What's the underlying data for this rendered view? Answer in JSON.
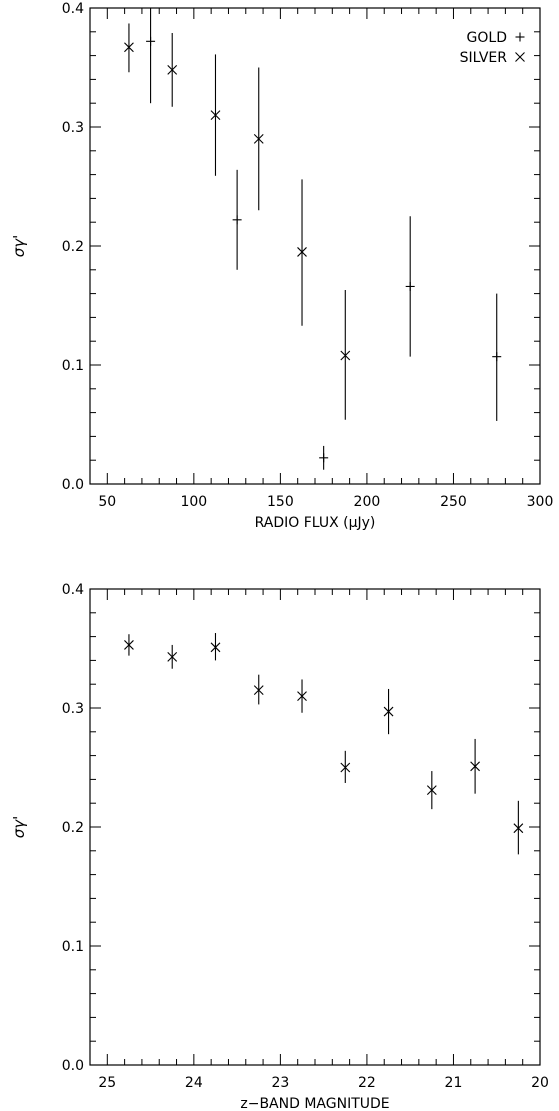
{
  "chart_data": [
    {
      "type": "scatter",
      "xlabel": "RADIO FLUX (μJy)",
      "ylabel": "σγ'",
      "xlim": [
        40,
        300
      ],
      "ylim": [
        0.0,
        0.4
      ],
      "xticks": [
        50,
        100,
        150,
        200,
        250,
        300
      ],
      "yticks": [
        0.0,
        0.1,
        0.2,
        0.3,
        0.4
      ],
      "xtick_labels": [
        "50",
        "100",
        "150",
        "200",
        "250",
        "300"
      ],
      "ytick_labels": [
        "0.0",
        "0.1",
        "0.2",
        "0.3",
        "0.4"
      ],
      "legend": {
        "placement": "top-right",
        "entries": [
          "GOLD",
          "SILVER"
        ]
      },
      "series": [
        {
          "name": "GOLD",
          "marker": "plus",
          "points": [
            {
              "x": 75,
              "y": 0.372,
              "ylo": 0.32,
              "yhi": 0.42
            },
            {
              "x": 125,
              "y": 0.222,
              "ylo": 0.18,
              "yhi": 0.264
            },
            {
              "x": 175,
              "y": 0.022,
              "ylo": 0.012,
              "yhi": 0.032
            },
            {
              "x": 225,
              "y": 0.166,
              "ylo": 0.107,
              "yhi": 0.225
            },
            {
              "x": 275,
              "y": 0.107,
              "ylo": 0.053,
              "yhi": 0.16
            }
          ]
        },
        {
          "name": "SILVER",
          "marker": "cross",
          "points": [
            {
              "x": 62.5,
              "y": 0.367,
              "ylo": 0.346,
              "yhi": 0.387
            },
            {
              "x": 87.5,
              "y": 0.348,
              "ylo": 0.317,
              "yhi": 0.379
            },
            {
              "x": 112.5,
              "y": 0.31,
              "ylo": 0.259,
              "yhi": 0.361
            },
            {
              "x": 137.5,
              "y": 0.29,
              "ylo": 0.23,
              "yhi": 0.35
            },
            {
              "x": 162.5,
              "y": 0.195,
              "ylo": 0.133,
              "yhi": 0.256
            },
            {
              "x": 187.5,
              "y": 0.108,
              "ylo": 0.054,
              "yhi": 0.163
            }
          ]
        }
      ]
    },
    {
      "type": "scatter",
      "xlabel": "z−BAND MAGNITUDE",
      "ylabel": "σγ'",
      "xlim": [
        25.2,
        20.0
      ],
      "ylim": [
        0.0,
        0.4
      ],
      "xticks": [
        25,
        24,
        23,
        22,
        21,
        20
      ],
      "yticks": [
        0.0,
        0.1,
        0.2,
        0.3,
        0.4
      ],
      "xtick_labels": [
        "25",
        "24",
        "23",
        "22",
        "21",
        "20"
      ],
      "ytick_labels": [
        "0.0",
        "0.1",
        "0.2",
        "0.3",
        "0.4"
      ],
      "series": [
        {
          "name": "SILVER",
          "marker": "cross",
          "points": [
            {
              "x": 24.75,
              "y": 0.353,
              "ylo": 0.344,
              "yhi": 0.362
            },
            {
              "x": 24.25,
              "y": 0.343,
              "ylo": 0.333,
              "yhi": 0.353
            },
            {
              "x": 23.75,
              "y": 0.351,
              "ylo": 0.34,
              "yhi": 0.363
            },
            {
              "x": 23.25,
              "y": 0.315,
              "ylo": 0.303,
              "yhi": 0.328
            },
            {
              "x": 22.75,
              "y": 0.31,
              "ylo": 0.296,
              "yhi": 0.324
            },
            {
              "x": 22.25,
              "y": 0.25,
              "ylo": 0.237,
              "yhi": 0.264
            },
            {
              "x": 21.75,
              "y": 0.297,
              "ylo": 0.278,
              "yhi": 0.316
            },
            {
              "x": 21.25,
              "y": 0.231,
              "ylo": 0.215,
              "yhi": 0.247
            },
            {
              "x": 20.75,
              "y": 0.251,
              "ylo": 0.228,
              "yhi": 0.274
            },
            {
              "x": 20.25,
              "y": 0.199,
              "ylo": 0.177,
              "yhi": 0.222
            }
          ]
        }
      ]
    }
  ]
}
